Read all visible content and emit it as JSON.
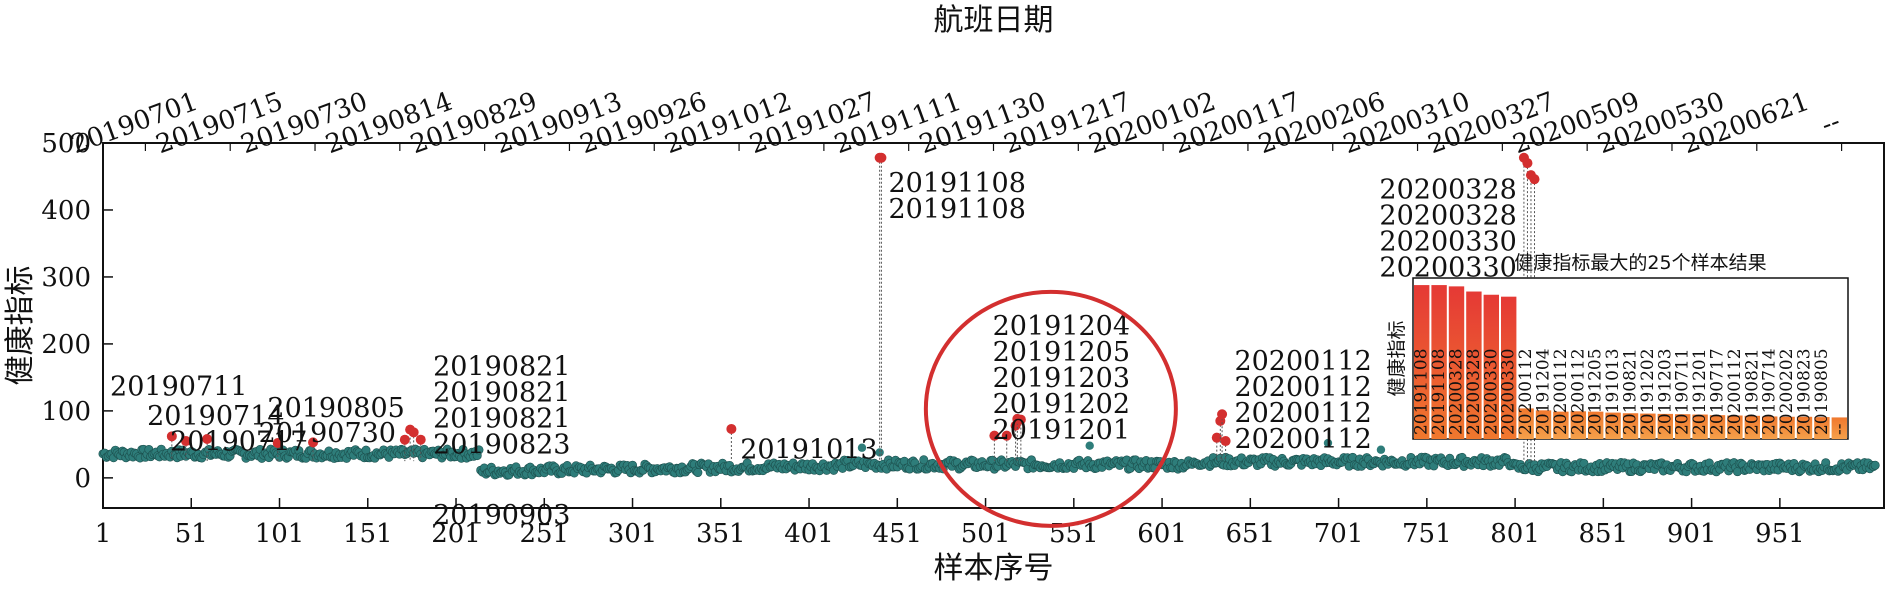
{
  "chart_data": {
    "type": "scatter",
    "xlabel": "样本序号",
    "ylabel": "健康指标",
    "x2label": "航班日期",
    "xlim": [
      1,
      1010
    ],
    "ylim": [
      -45,
      500
    ],
    "x_ticks": [
      1,
      51,
      101,
      151,
      201,
      251,
      301,
      351,
      401,
      451,
      501,
      551,
      601,
      651,
      701,
      751,
      801,
      851,
      901,
      951
    ],
    "y_ticks": [
      0,
      100,
      200,
      300,
      400,
      500
    ],
    "top_ticks": [
      "20190701",
      "20190715",
      "20190730",
      "20190814",
      "20190829",
      "20190913",
      "20190926",
      "20191012",
      "20191027",
      "20191111",
      "20191130",
      "20191217",
      "20200102",
      "20200117",
      "20200206",
      "20200310",
      "20200327",
      "20200509",
      "20200530",
      "20200621",
      "--"
    ],
    "colors": {
      "normal": "#2e7d7a",
      "anomaly": "#d32f2f",
      "circle": "#d32f2f"
    },
    "highlights": [
      {
        "x": 40,
        "y": 62
      },
      {
        "x": 48,
        "y": 55
      },
      {
        "x": 60,
        "y": 58
      },
      {
        "x": 100,
        "y": 52
      },
      {
        "x": 120,
        "y": 53
      },
      {
        "x": 172,
        "y": 57
      },
      {
        "x": 175,
        "y": 72
      },
      {
        "x": 177,
        "y": 68
      },
      {
        "x": 181,
        "y": 57
      },
      {
        "x": 357,
        "y": 73
      },
      {
        "x": 441,
        "y": 478
      },
      {
        "x": 442,
        "y": 478
      },
      {
        "x": 506,
        "y": 63
      },
      {
        "x": 513,
        "y": 63
      },
      {
        "x": 518,
        "y": 78
      },
      {
        "x": 519,
        "y": 88
      },
      {
        "x": 521,
        "y": 87
      },
      {
        "x": 632,
        "y": 60
      },
      {
        "x": 634,
        "y": 85
      },
      {
        "x": 635,
        "y": 95
      },
      {
        "x": 637,
        "y": 55
      },
      {
        "x": 806,
        "y": 478
      },
      {
        "x": 808,
        "y": 470
      },
      {
        "x": 810,
        "y": 452
      },
      {
        "x": 812,
        "y": 446
      }
    ],
    "annotations": [
      {
        "x": 5,
        "y": 162,
        "lines": [
          "20190711"
        ]
      },
      {
        "x": 26,
        "y": 118,
        "lines": [
          "20190714"
        ]
      },
      {
        "x": 39,
        "y": 80,
        "lines": [
          "20190717"
        ]
      },
      {
        "x": 172,
        "y": 130,
        "lines": [
          "20190805"
        ],
        "anchor": "end"
      },
      {
        "x": 167,
        "y": 92,
        "lines": [
          "20190730"
        ],
        "anchor": "end"
      },
      {
        "x": 188,
        "y": 192,
        "lines": [
          "20190821",
          "20190821",
          "20190821",
          "20190823"
        ]
      },
      {
        "x": 188,
        "y": -30,
        "lines": [
          "20190903"
        ],
        "color": "#d32f2f"
      },
      {
        "x": 362,
        "y": 68,
        "lines": [
          "20191013"
        ]
      },
      {
        "x": 446,
        "y": 466,
        "lines": [
          "20191108",
          "20191108"
        ]
      },
      {
        "x": 505,
        "y": 252,
        "lines": [
          "20191204",
          "20191205",
          "20191203",
          "20191202",
          "20191201"
        ]
      },
      {
        "x": 642,
        "y": 200,
        "lines": [
          "20200112",
          "20200112",
          "20200112",
          "20200112"
        ]
      },
      {
        "x": 802,
        "y": 456,
        "lines": [
          "20200328",
          "20200328",
          "20200330",
          "20200330"
        ],
        "anchor": "end"
      }
    ],
    "inset": {
      "title": "健康指标最大的25个样本结果",
      "ylabel": "健康指标",
      "categories": [
        "20191108",
        "20191108",
        "20200328",
        "20200328",
        "20200330",
        "20200330",
        "20200112",
        "20191204",
        "20200112",
        "20200112",
        "20191205",
        "20191013",
        "20190821",
        "20191202",
        "20191203",
        "20190711",
        "20191201",
        "20190717",
        "20200112",
        "20190821",
        "20190714",
        "20200202",
        "20190823",
        "20190805",
        "--"
      ],
      "values": [
        478,
        478,
        474,
        458,
        448,
        442,
        95,
        89,
        85,
        86,
        85,
        82,
        80,
        79,
        78,
        77,
        76,
        74,
        73,
        72,
        70,
        69,
        69,
        68,
        67
      ],
      "ylim": [
        0,
        500
      ]
    }
  }
}
